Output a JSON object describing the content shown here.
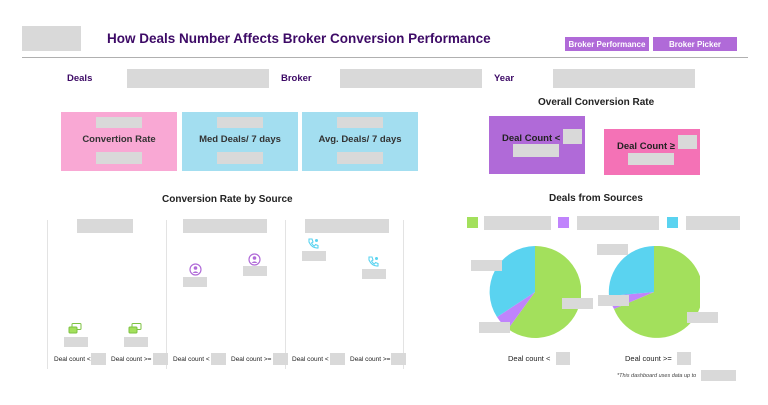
{
  "header": {
    "title": "How Deals Number Affects Broker Conversion Performance",
    "nav": [
      "Broker Performance",
      "Broker Picker"
    ]
  },
  "filters": {
    "deals_label": "Deals",
    "broker_label": "Broker",
    "year_label": "Year"
  },
  "kpis": [
    {
      "label": "Convertion Rate",
      "color": "#f9a8d4"
    },
    {
      "label": "Med Deals/ 7 days",
      "color": "#a3def0"
    },
    {
      "label": "Avg. Deals/ 7 days",
      "color": "#a3def0"
    }
  ],
  "overall": {
    "title": "Overall Conversion Rate",
    "low_label": "Deal Count <",
    "high_label": "Deal Count ≥",
    "low_color": "#b06ad8",
    "high_color": "#f472b6"
  },
  "conv_by_source": {
    "title": "Conversion Rate by Source",
    "bottom_labels": [
      "Deal count <",
      "Deal count >=",
      "Deal count <",
      "Deal count >=",
      "Deal count <",
      "Deal count >="
    ]
  },
  "deals_from_sources": {
    "title": "Deals from Sources",
    "legend_colors": [
      "#a3e05c",
      "#c084fc",
      "#5ad3f0"
    ],
    "pie_low_label": "Deal count <",
    "pie_high_label": "Deal count >=",
    "footnote": "*This dashboard uses data up to"
  },
  "colors": {
    "green": "#a3e05c",
    "purple": "#c084fc",
    "cyan": "#5ad3f0",
    "title": "#3d0a66"
  }
}
